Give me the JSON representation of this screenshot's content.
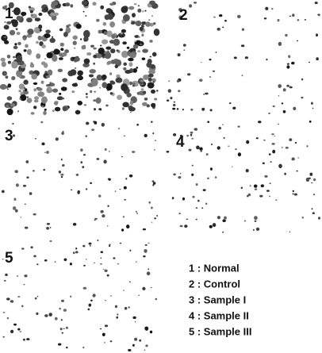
{
  "panels": [
    {
      "label": "1"
    },
    {
      "label": "2"
    },
    {
      "label": "3"
    },
    {
      "label": "4"
    },
    {
      "label": "5"
    }
  ],
  "legend": [
    "1 : Normal",
    "2 : Control",
    "3 : Sample I",
    "4 : Sample II",
    "5 : Sample III"
  ]
}
